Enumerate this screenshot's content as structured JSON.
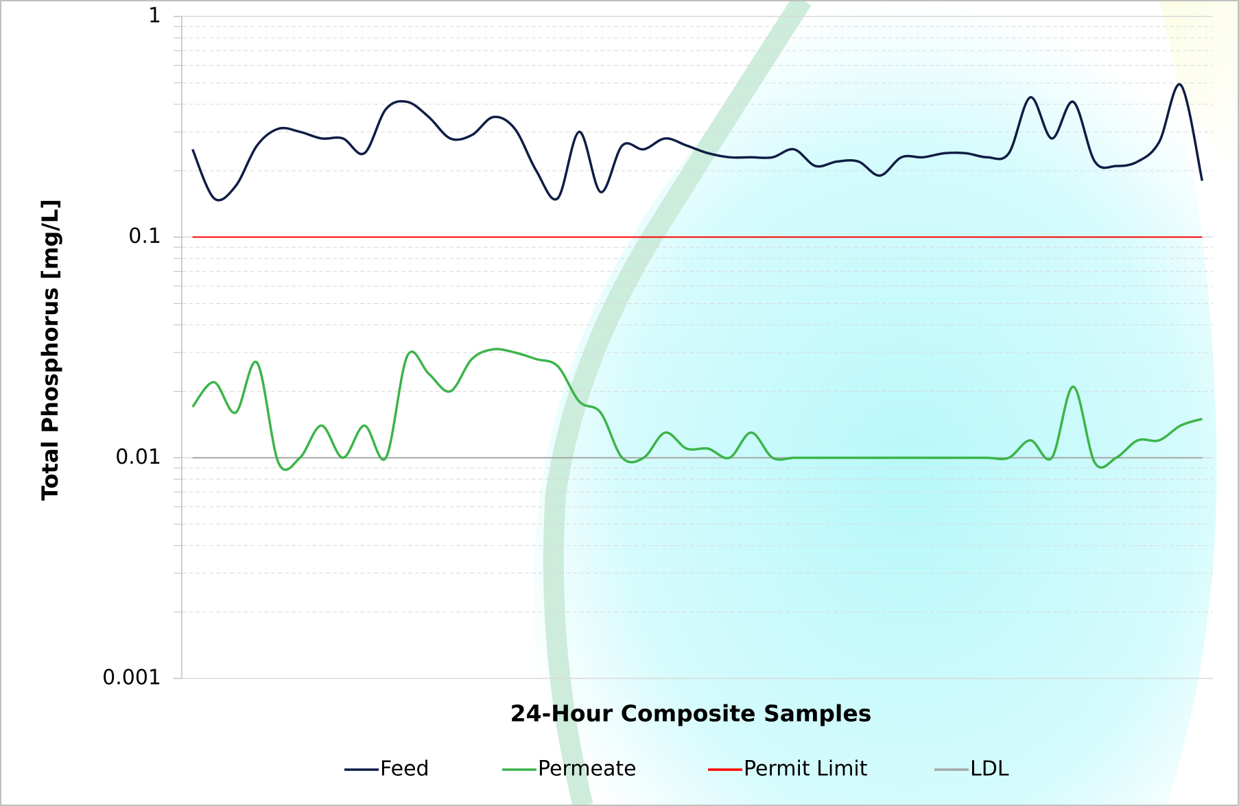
{
  "chart_data": {
    "type": "line",
    "y_label": "Total Phosphorus [mg/L]",
    "x_label": "24-Hour Composite Samples",
    "log_scale": true,
    "grid": true,
    "legend": "bottom",
    "categories": [
      null,
      null,
      null,
      null,
      null,
      null,
      null,
      null,
      null,
      null,
      null,
      null,
      null,
      null,
      null,
      null,
      null,
      null,
      null,
      null,
      null,
      null,
      null,
      null,
      null,
      null,
      null,
      null,
      null,
      null,
      null,
      null,
      null,
      null,
      null,
      null,
      null,
      null,
      null,
      null,
      null,
      null,
      null,
      null,
      null,
      null,
      null,
      null
    ],
    "ylim": [
      0.001,
      1
    ],
    "yticks": [
      0.001,
      0.01,
      0.1,
      1
    ],
    "series": [
      {
        "name": "Feed",
        "color": "#0f1c45",
        "values": [
          0.25,
          0.15,
          0.17,
          0.26,
          0.31,
          0.3,
          0.28,
          0.28,
          0.24,
          0.38,
          0.41,
          0.35,
          0.28,
          0.29,
          0.35,
          0.31,
          0.2,
          0.15,
          0.3,
          0.16,
          0.26,
          0.25,
          0.28,
          0.26,
          0.24,
          0.23,
          0.23,
          0.23,
          0.25,
          0.21,
          0.22,
          0.22,
          0.19,
          0.23,
          0.23,
          0.24,
          0.24,
          0.23,
          0.24,
          0.43,
          0.28,
          0.41,
          0.22,
          0.21,
          0.22,
          0.27,
          0.49,
          0.18
        ]
      },
      {
        "name": "Permeate",
        "color": "#3cb44a",
        "values": [
          0.017,
          0.022,
          0.016,
          0.027,
          0.0095,
          0.01,
          0.014,
          0.01,
          0.014,
          0.01,
          0.029,
          0.024,
          0.02,
          0.028,
          0.031,
          0.03,
          0.028,
          0.026,
          0.018,
          0.016,
          0.01,
          0.01,
          0.013,
          0.011,
          0.011,
          0.01,
          0.013,
          0.01,
          0.01,
          0.01,
          0.01,
          0.01,
          0.01,
          0.01,
          0.01,
          0.01,
          0.01,
          0.01,
          0.01,
          0.012,
          0.01,
          0.021,
          0.0095,
          0.01,
          0.012,
          0.012,
          0.014,
          0.015
        ]
      },
      {
        "name": "Permit Limit",
        "color": "#ff0000",
        "values": [
          0.1,
          0.1,
          0.1,
          0.1,
          0.1,
          0.1,
          0.1,
          0.1,
          0.1,
          0.1,
          0.1,
          0.1,
          0.1,
          0.1,
          0.1,
          0.1,
          0.1,
          0.1,
          0.1,
          0.1,
          0.1,
          0.1,
          0.1,
          0.1,
          0.1,
          0.1,
          0.1,
          0.1,
          0.1,
          0.1,
          0.1,
          0.1,
          0.1,
          0.1,
          0.1,
          0.1,
          0.1,
          0.1,
          0.1,
          0.1,
          0.1,
          0.1,
          0.1,
          0.1,
          0.1,
          0.1,
          0.1,
          0.1
        ]
      },
      {
        "name": "LDL",
        "color": "#a6a6a6",
        "values": [
          0.01,
          0.01,
          0.01,
          0.01,
          0.01,
          0.01,
          0.01,
          0.01,
          0.01,
          0.01,
          0.01,
          0.01,
          0.01,
          0.01,
          0.01,
          0.01,
          0.01,
          0.01,
          0.01,
          0.01,
          0.01,
          0.01,
          0.01,
          0.01,
          0.01,
          0.01,
          0.01,
          0.01,
          0.01,
          0.01,
          0.01,
          0.01,
          0.01,
          0.01,
          0.01,
          0.01,
          0.01,
          0.01,
          0.01,
          0.01,
          0.01,
          0.01,
          0.01,
          0.01,
          0.01,
          0.01,
          0.01,
          0.01
        ]
      }
    ]
  }
}
